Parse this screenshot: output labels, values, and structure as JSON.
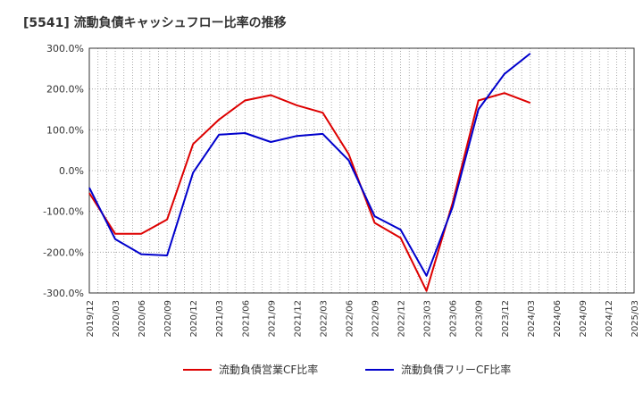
{
  "chart_data": {
    "type": "line",
    "title": "[5541]  流動負債キャッシュフロー比率の推移",
    "ylim": [
      -300,
      300
    ],
    "y_ticks": [
      "300.0%",
      "200.0%",
      "100.0%",
      "0.0%",
      "-100.0%",
      "-200.0%",
      "-300.0%"
    ],
    "y_tick_values": [
      300,
      200,
      100,
      0,
      -100,
      -200,
      -300
    ],
    "categories": [
      "2019/12",
      "2020/03",
      "2020/06",
      "2020/09",
      "2020/12",
      "2021/03",
      "2021/06",
      "2021/09",
      "2021/12",
      "2022/03",
      "2022/06",
      "2022/09",
      "2022/12",
      "2023/03",
      "2023/06",
      "2023/09",
      "2023/12",
      "2024/03",
      "2024/06",
      "2024/09",
      "2024/12",
      "2025/03"
    ],
    "grid": "dotted",
    "legend_position": "bottom",
    "series": [
      {
        "name": "流動負債営業CF比率",
        "color": "#dd0000",
        "points": [
          [
            "2019/12",
            -55
          ],
          [
            "2020/03",
            -155
          ],
          [
            "2020/06",
            -155
          ],
          [
            "2020/09",
            -120
          ],
          [
            "2020/12",
            65
          ],
          [
            "2021/03",
            125
          ],
          [
            "2021/06",
            172
          ],
          [
            "2021/09",
            185
          ],
          [
            "2021/12",
            160
          ],
          [
            "2022/03",
            142
          ],
          [
            "2022/06",
            40
          ],
          [
            "2022/09",
            -128
          ],
          [
            "2022/12",
            -165
          ],
          [
            "2023/03",
            -295
          ],
          [
            "2023/06",
            -80
          ],
          [
            "2023/09",
            172
          ],
          [
            "2023/12",
            190
          ],
          [
            "2024/03",
            166
          ]
        ]
      },
      {
        "name": "流動負債フリーCF比率",
        "color": "#0000cc",
        "points": [
          [
            "2019/12",
            -42
          ],
          [
            "2020/03",
            -168
          ],
          [
            "2020/06",
            -205
          ],
          [
            "2020/09",
            -208
          ],
          [
            "2020/12",
            -5
          ],
          [
            "2021/03",
            88
          ],
          [
            "2021/06",
            92
          ],
          [
            "2021/09",
            70
          ],
          [
            "2021/12",
            85
          ],
          [
            "2022/03",
            90
          ],
          [
            "2022/06",
            25
          ],
          [
            "2022/09",
            -112
          ],
          [
            "2022/12",
            -145
          ],
          [
            "2023/03",
            -258
          ],
          [
            "2023/06",
            -90
          ],
          [
            "2023/09",
            150
          ],
          [
            "2023/12",
            237
          ],
          [
            "2024/03",
            287
          ]
        ]
      }
    ]
  }
}
